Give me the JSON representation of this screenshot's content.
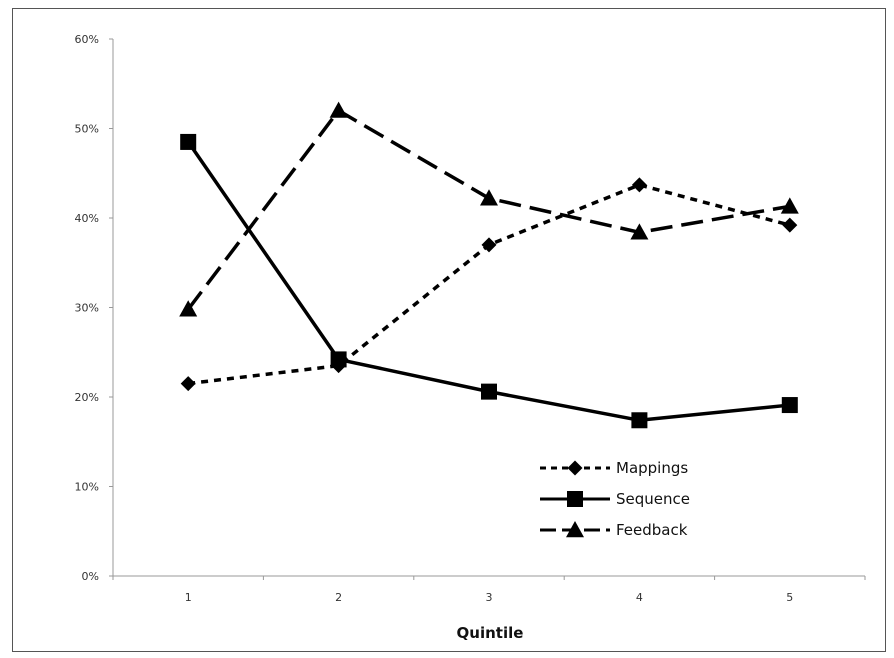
{
  "chart_data": {
    "type": "line",
    "title": "",
    "xlabel": "Quintile",
    "ylabel": "",
    "categories": [
      "1",
      "2",
      "3",
      "4",
      "5"
    ],
    "y_ticks": [
      "0%",
      "10%",
      "20%",
      "30%",
      "40%",
      "50%",
      "60%"
    ],
    "ylim": [
      0,
      60
    ],
    "grid": false,
    "legend_position": "bottom-right",
    "series": [
      {
        "name": "Mappings",
        "values": [
          21.5,
          23.5,
          37,
          43.7,
          39.2
        ],
        "line_style": "short-dash",
        "marker": "diamond",
        "color": "#000000"
      },
      {
        "name": "Sequence",
        "values": [
          48.5,
          24.2,
          20.6,
          17.4,
          19.1
        ],
        "line_style": "solid",
        "marker": "square",
        "color": "#000000"
      },
      {
        "name": "Feedback",
        "values": [
          29.8,
          52,
          42.2,
          38.4,
          41.3
        ],
        "line_style": "long-dash",
        "marker": "triangle",
        "color": "#000000"
      }
    ]
  }
}
